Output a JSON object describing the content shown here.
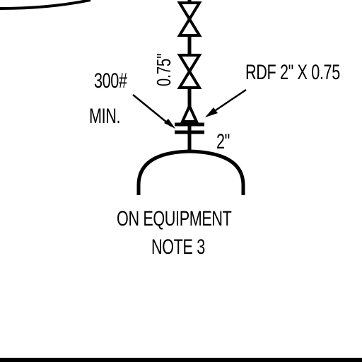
{
  "labels": {
    "rating": "300#",
    "min": "MIN.",
    "valve_size": "0.75\"",
    "rdf": "RDF 2\" X 0.75",
    "nozzle_size": "2\"",
    "equipment_line1": "ON EQUIPMENT",
    "equipment_line2": "NOTE 3"
  },
  "colors": {
    "ink": "#000000",
    "paper": "#ffffff"
  }
}
